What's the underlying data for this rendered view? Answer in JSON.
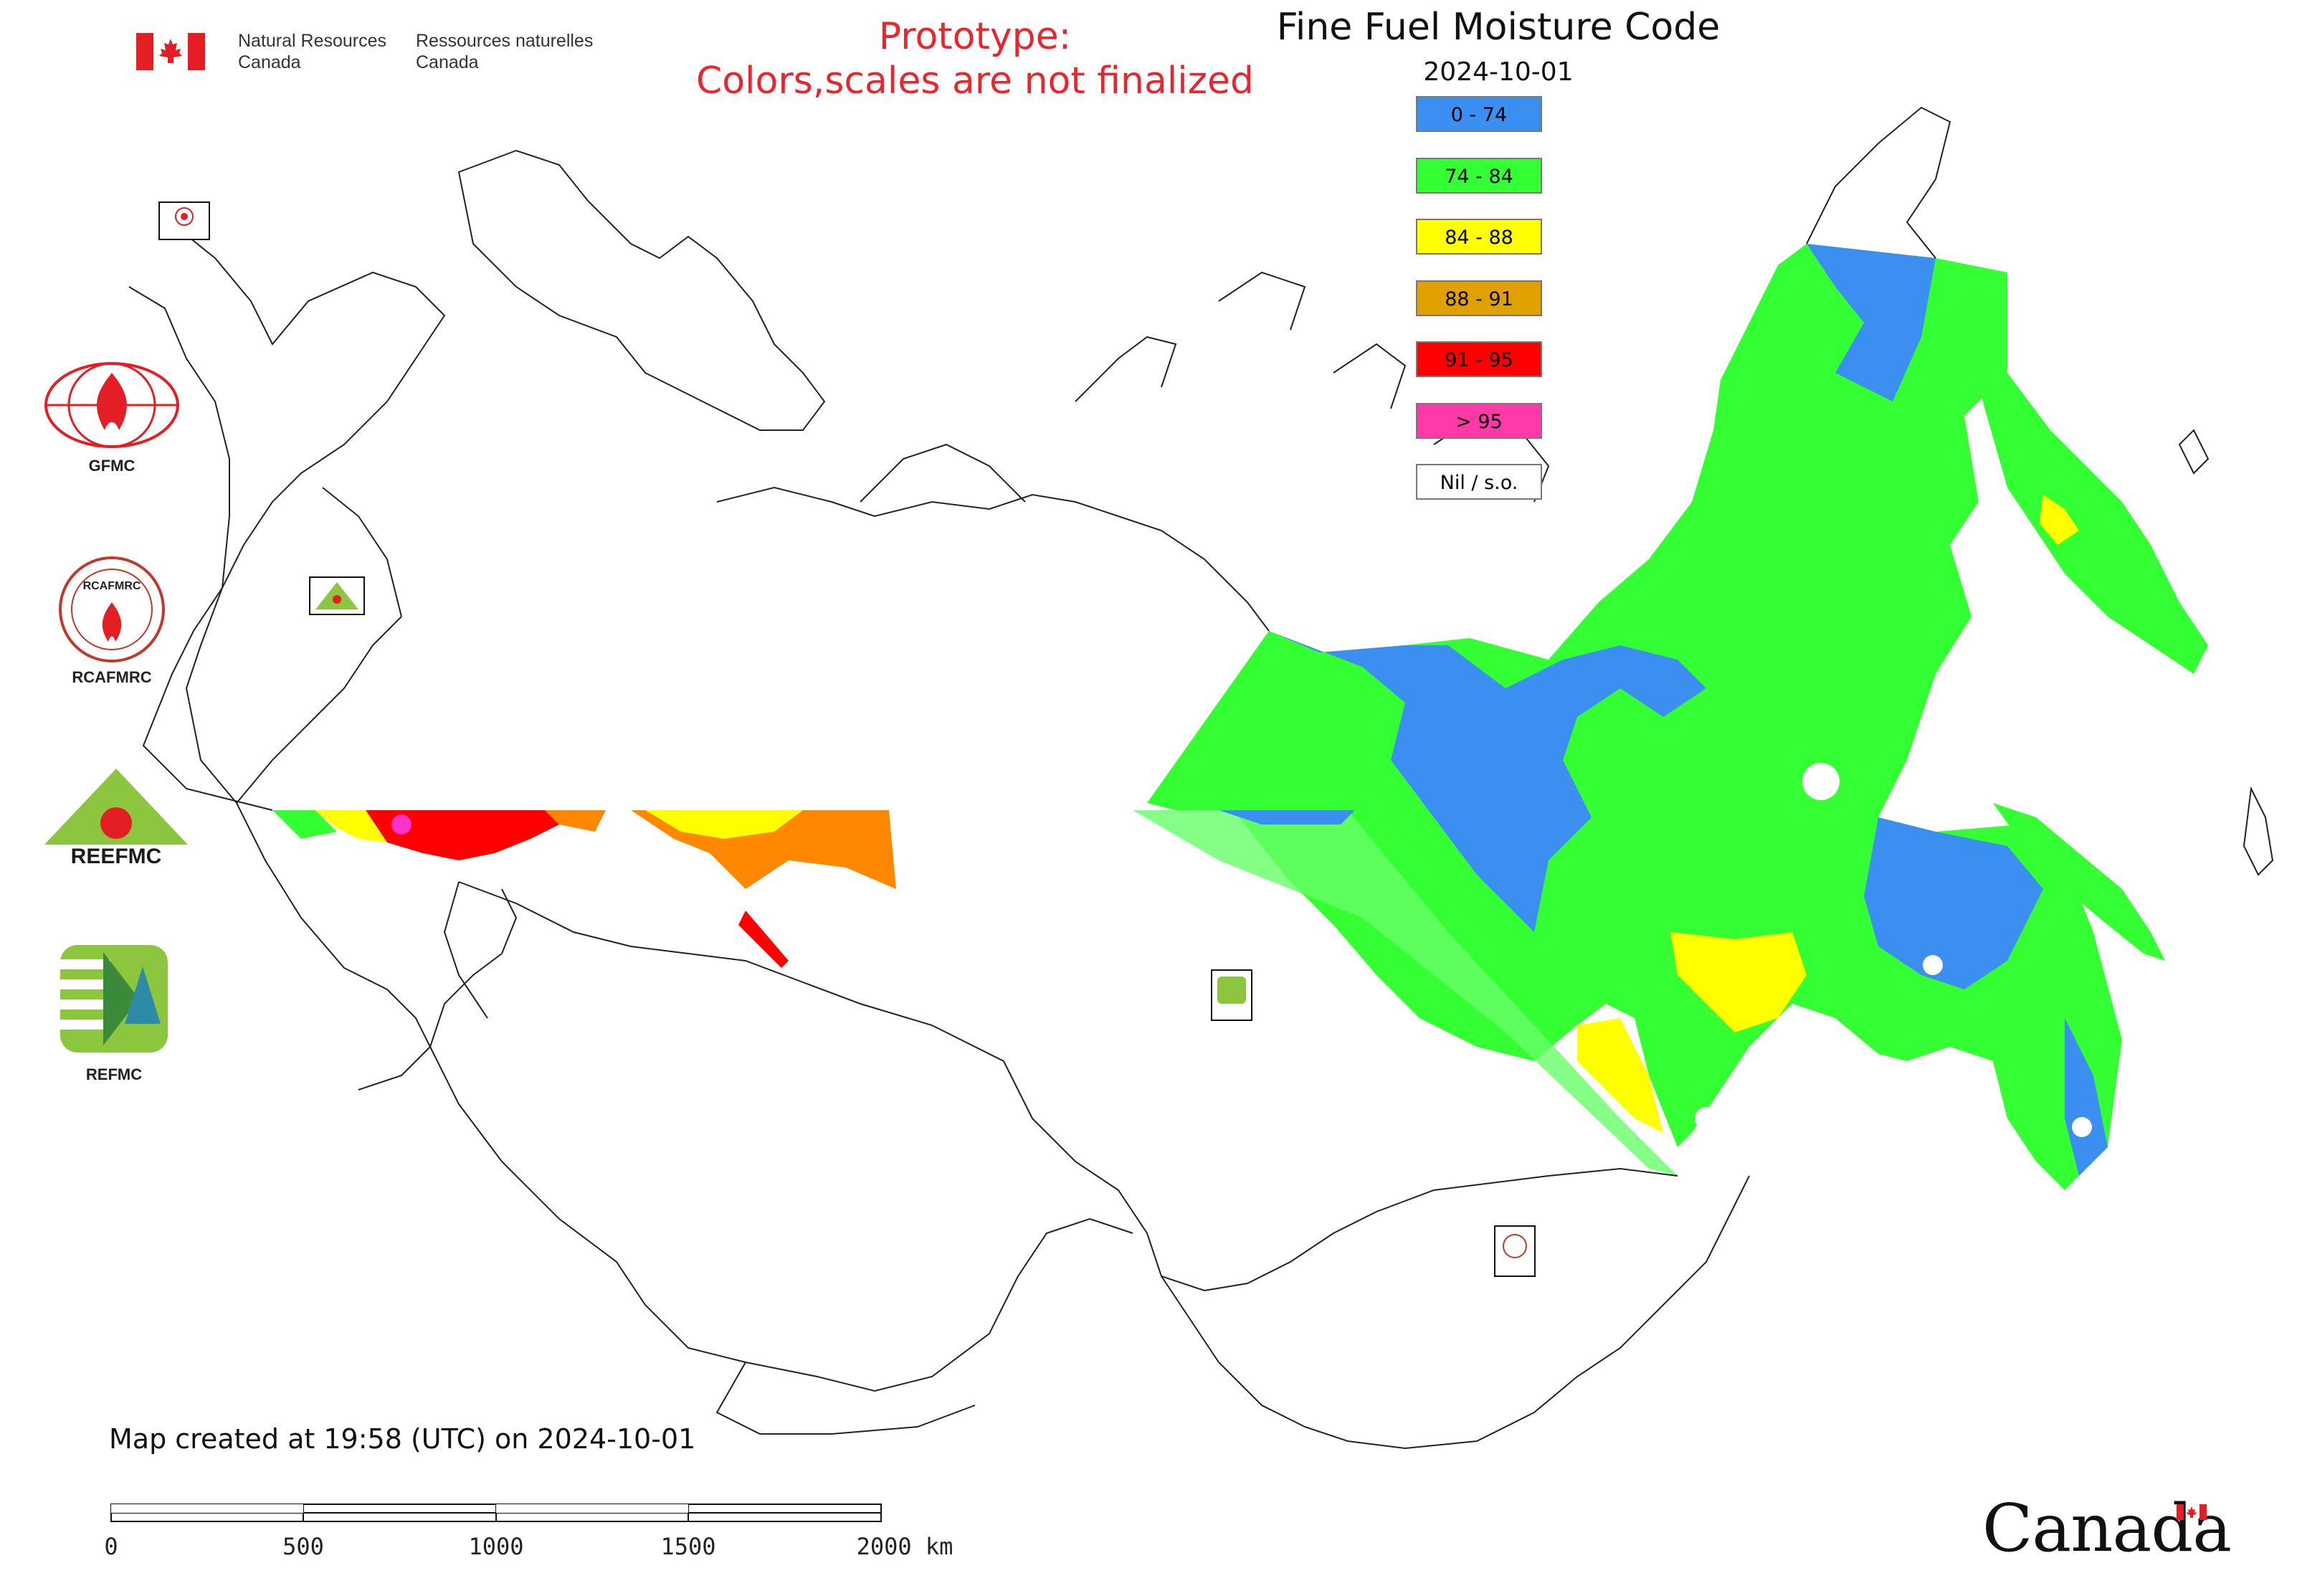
{
  "header": {
    "dept_en": [
      "Natural Resources",
      "Canada"
    ],
    "dept_fr": [
      "Ressources naturelles",
      "Canada"
    ],
    "prototype_notice": [
      "Prototype:",
      "Colors,scales are not finalized"
    ]
  },
  "map": {
    "title": "Fine Fuel Moisture Code",
    "date": "2024-10-01",
    "legend": [
      {
        "label": "0 - 74",
        "color": "#3a8ff0"
      },
      {
        "label": "74 - 84",
        "color": "#33ff33"
      },
      {
        "label": "84 - 88",
        "color": "#ffff00"
      },
      {
        "label": "88 - 91",
        "color": "#e0a000"
      },
      {
        "label": "91 - 95",
        "color": "#ff0000"
      },
      {
        "label": "> 95",
        "color": "#ff3aa8"
      },
      {
        "label": "Nil / s.o.",
        "color": "#ffffff"
      }
    ]
  },
  "logos": [
    {
      "label": "GFMC"
    },
    {
      "label": "RCAFMRC"
    },
    {
      "label": "REEFMC"
    },
    {
      "label": "REFMC"
    }
  ],
  "footer": {
    "created": "Map created at 19:58 (UTC) on 2024-10-01",
    "scale_labels": [
      "0",
      "500",
      "1000",
      "1500",
      "2000 km"
    ],
    "wordmark": "Canada"
  }
}
